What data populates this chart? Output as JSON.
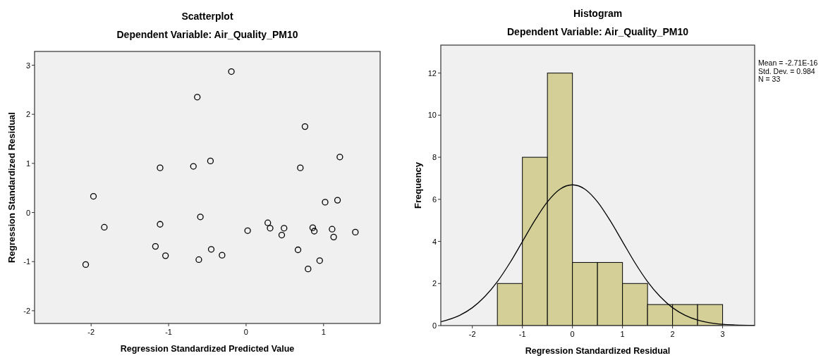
{
  "chart_data": [
    {
      "type": "scatter",
      "title": "Scatterplot",
      "subtitle": "Dependent Variable: Air_Quality_PM10",
      "xlabel": "Regression Standardized Predicted Value",
      "ylabel": "Regression Standardized Residual",
      "marker": "circle",
      "grid": false,
      "color": "#000000",
      "x": [
        -0.19,
        -0.63,
        0.76,
        1.21,
        -0.46,
        -0.68,
        -1.11,
        0.7,
        -1.97,
        1.18,
        1.02,
        -0.59,
        -1.83,
        -1.11,
        0.28,
        0.31,
        0.49,
        0.02,
        0.86,
        0.88,
        1.11,
        1.41,
        0.46,
        1.13,
        -1.17,
        -0.45,
        0.67,
        -1.04,
        -0.31,
        -0.61,
        0.95,
        0.8,
        -2.07
      ],
      "values": [
        2.87,
        2.35,
        1.75,
        1.13,
        1.05,
        0.94,
        0.91,
        0.91,
        0.33,
        0.25,
        0.21,
        -0.09,
        -0.3,
        -0.24,
        -0.21,
        -0.32,
        -0.32,
        -0.37,
        -0.31,
        -0.38,
        -0.34,
        -0.4,
        -0.46,
        -0.5,
        -0.69,
        -0.75,
        -0.76,
        -0.88,
        -0.87,
        -0.96,
        -0.98,
        -1.15,
        -1.06
      ],
      "xlim": [
        -2.73,
        1.73
      ],
      "xticks": [
        -2,
        -1,
        0,
        1
      ],
      "ylim": [
        -2.26,
        3.28
      ],
      "yticks": [
        -2,
        -1,
        0,
        1,
        2,
        3
      ]
    },
    {
      "type": "histogram",
      "title": "Histogram",
      "subtitle": "Dependent Variable: Air_Quality_PM10",
      "xlabel": "Regression Standardized Residual",
      "ylabel": "Frequency",
      "grid": false,
      "color": "#d3cf97",
      "bins": [
        -1.5,
        -1,
        -0.5,
        0,
        0.5,
        1,
        1.5,
        2,
        2.5,
        3
      ],
      "values": [
        2,
        8,
        12,
        3,
        3,
        2,
        1,
        1,
        1
      ],
      "series": [
        {
          "type": "line",
          "color": "#000000",
          "x": [
            -2.63,
            -2.25,
            -2,
            -1.75,
            -1.5,
            -1.25,
            -1,
            -0.75,
            -0.5,
            -0.25,
            0,
            0.25,
            0.5,
            0.75,
            1,
            1.25,
            1.5,
            1.75,
            2,
            2.25,
            2.5,
            2.75,
            3,
            3.25,
            3.64
          ],
          "values": [
            0.18,
            0.49,
            0.85,
            1.38,
            2.09,
            2.98,
            3.99,
            5.0,
            5.88,
            6.48,
            6.69,
            6.48,
            5.88,
            5.0,
            3.99,
            2.98,
            2.09,
            1.38,
            0.85,
            0.49,
            0.26,
            0.13,
            0.06,
            0.03,
            0.01
          ]
        }
      ],
      "annotations": [
        "Mean = -2.71E-16",
        "Std. Dev. = 0.984",
        "N = 33"
      ],
      "xlim": [
        -2.63,
        3.64
      ],
      "xticks": [
        -2,
        -1,
        0,
        1,
        2,
        3
      ],
      "ylim": [
        0,
        13.33
      ],
      "yticks": [
        0,
        2,
        4,
        6,
        8,
        10,
        12
      ]
    }
  ]
}
